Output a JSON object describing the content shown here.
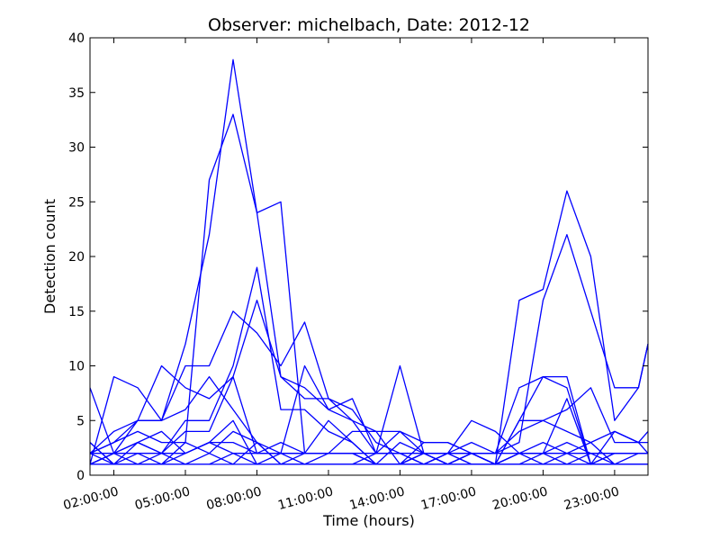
{
  "chart_data": {
    "type": "line",
    "title": "Observer: michelbach, Date: 2012-12",
    "xlabel": "Time (hours)",
    "ylabel": "Detection count",
    "xlim": [
      0,
      23.4
    ],
    "ylim": [
      0,
      40
    ],
    "x_ticks": [
      {
        "value": 1,
        "label": "02:00:00"
      },
      {
        "value": 4,
        "label": "05:00:00"
      },
      {
        "value": 7,
        "label": "08:00:00"
      },
      {
        "value": 10,
        "label": "11:00:00"
      },
      {
        "value": 13,
        "label": "14:00:00"
      },
      {
        "value": 16,
        "label": "17:00:00"
      },
      {
        "value": 19,
        "label": "20:00:00"
      },
      {
        "value": 22,
        "label": "23:00:00"
      }
    ],
    "y_ticks": [
      0,
      5,
      10,
      15,
      20,
      25,
      30,
      35,
      40
    ],
    "grid": false,
    "color": "#0000ff",
    "series": [
      {
        "x": [
          0,
          1,
          2,
          3,
          4,
          5,
          6,
          7,
          8,
          9,
          10,
          11,
          12,
          13,
          14,
          15,
          16,
          17,
          18,
          19,
          20,
          21,
          22,
          23,
          23.4
        ],
        "y": [
          3,
          1,
          1,
          1,
          3,
          27,
          33,
          24,
          25,
          2,
          2,
          2,
          1,
          1,
          2,
          1,
          2,
          1,
          16,
          17,
          26,
          20,
          5,
          8,
          12
        ]
      },
      {
        "x": [
          0,
          1,
          2,
          3,
          4,
          5,
          6,
          7,
          8,
          9,
          10,
          11,
          12,
          13,
          14,
          15,
          16,
          17,
          18,
          19,
          20,
          21,
          22,
          23,
          23.4
        ],
        "y": [
          1,
          2,
          5,
          5,
          12,
          22,
          38,
          24,
          9,
          8,
          6,
          5,
          4,
          4,
          3,
          3,
          2,
          2,
          3,
          16,
          22,
          15,
          8,
          8,
          12
        ]
      },
      {
        "x": [
          0,
          1,
          2,
          3,
          4,
          5,
          6,
          7,
          8,
          9,
          10,
          11,
          12,
          13,
          14,
          15,
          16,
          17,
          18,
          19,
          20,
          21,
          22,
          23,
          23.4
        ],
        "y": [
          2,
          3,
          5,
          5,
          10,
          10,
          15,
          13,
          10,
          14,
          7,
          6,
          3,
          2,
          2,
          2,
          2,
          1,
          5,
          9,
          9,
          1,
          4,
          3,
          4
        ]
      },
      {
        "x": [
          0,
          1,
          2,
          3,
          4,
          5,
          6,
          7,
          8,
          9,
          10,
          11,
          12,
          13,
          14,
          15,
          16,
          17,
          18,
          19,
          20,
          21,
          22,
          23,
          23.4
        ],
        "y": [
          2,
          4,
          5,
          10,
          8,
          7,
          9,
          16,
          9,
          7,
          7,
          5,
          2,
          10,
          2,
          1,
          2,
          2,
          8,
          9,
          8,
          1,
          2,
          2,
          2
        ]
      },
      {
        "x": [
          0,
          1,
          2,
          3,
          4,
          5,
          6,
          7,
          8,
          9,
          10,
          11,
          12,
          13,
          14,
          15,
          16,
          17,
          18,
          19,
          20,
          21,
          22,
          23,
          23.4
        ],
        "y": [
          8,
          2,
          3,
          2,
          5,
          5,
          10,
          19,
          6,
          6,
          4,
          3,
          1,
          1,
          2,
          1,
          2,
          1,
          5,
          5,
          6,
          8,
          3,
          3,
          3
        ]
      },
      {
        "x": [
          0,
          1,
          2,
          3,
          4,
          5,
          6,
          7,
          8,
          9,
          10,
          11,
          12,
          13,
          14,
          15,
          16,
          17,
          18,
          19,
          20,
          21,
          22,
          23,
          23.4
        ],
        "y": [
          1,
          9,
          8,
          5,
          6,
          9,
          6,
          3,
          2,
          10,
          6,
          7,
          2,
          4,
          2,
          2,
          5,
          4,
          2,
          2,
          7,
          1,
          2,
          2,
          2
        ]
      },
      {
        "x": [
          0,
          1,
          2,
          3,
          4,
          5,
          6,
          7,
          8,
          9,
          10,
          11,
          12,
          13,
          14,
          15,
          16,
          17,
          18,
          19,
          20,
          21,
          22,
          23,
          23.4
        ],
        "y": [
          1,
          2,
          3,
          2,
          4,
          4,
          9,
          2,
          2,
          2,
          5,
          3,
          1,
          3,
          2,
          2,
          3,
          2,
          4,
          5,
          4,
          3,
          4,
          3,
          2
        ]
      },
      {
        "x": [
          0,
          1,
          2,
          3,
          4,
          5,
          6,
          7,
          8,
          9,
          10,
          11,
          12,
          13,
          14,
          15,
          16,
          17,
          18,
          19,
          20,
          21,
          22,
          23,
          23.4
        ],
        "y": [
          2,
          3,
          4,
          3,
          3,
          2,
          4,
          3,
          1,
          1,
          2,
          2,
          1,
          1,
          2,
          1,
          2,
          1,
          2,
          2,
          2,
          2,
          1,
          1,
          1
        ]
      },
      {
        "x": [
          0,
          1,
          2,
          3,
          4,
          5,
          6,
          7,
          8,
          9,
          10,
          11,
          12,
          13,
          14,
          15,
          16,
          17,
          18,
          19,
          20,
          21,
          22,
          23,
          23.4
        ],
        "y": [
          1,
          1,
          2,
          1,
          2,
          3,
          5,
          1,
          2,
          1,
          1,
          1,
          2,
          2,
          1,
          2,
          1,
          1,
          1,
          2,
          1,
          2,
          2,
          2,
          2
        ]
      },
      {
        "x": [
          0,
          1,
          2,
          3,
          4,
          5,
          6,
          7,
          8,
          9,
          10,
          11,
          12,
          13,
          14,
          15,
          16,
          17,
          18,
          19,
          20,
          21,
          22,
          23,
          23.4
        ],
        "y": [
          3,
          1,
          1,
          2,
          1,
          1,
          2,
          1,
          1,
          2,
          2,
          2,
          1,
          1,
          1,
          2,
          1,
          1,
          2,
          1,
          2,
          1,
          1,
          1,
          1
        ]
      },
      {
        "x": [
          0,
          1,
          2,
          3,
          4,
          5,
          6,
          7,
          8,
          9,
          10,
          11,
          12,
          13,
          14,
          15,
          16,
          17,
          18,
          19,
          20,
          21,
          22,
          23,
          23.4
        ],
        "y": [
          2,
          2,
          1,
          1,
          1,
          2,
          1,
          3,
          1,
          1,
          1,
          1,
          1,
          1,
          1,
          1,
          1,
          1,
          1,
          1,
          1,
          1,
          1,
          1,
          1
        ]
      },
      {
        "x": [
          0,
          1,
          2,
          3,
          4,
          5,
          6,
          7,
          8,
          9,
          10,
          11,
          12,
          13,
          14,
          15,
          16,
          17,
          18,
          19,
          20,
          21,
          22,
          23,
          23.4
        ],
        "y": [
          1,
          1,
          1,
          1,
          1,
          1,
          1,
          1,
          1,
          1,
          1,
          1,
          1,
          1,
          1,
          1,
          1,
          1,
          1,
          1,
          1,
          1,
          1,
          1,
          1
        ]
      },
      {
        "x": [
          0,
          1,
          2,
          3,
          4,
          5,
          6,
          7,
          8,
          9,
          10,
          11,
          12,
          13,
          14,
          15,
          16,
          17,
          18,
          19,
          20,
          21,
          22,
          23,
          23.4
        ],
        "y": [
          1,
          2,
          2,
          2,
          2,
          3,
          2,
          2,
          3,
          2,
          2,
          4,
          4,
          1,
          3,
          3,
          2,
          2,
          2,
          2,
          3,
          2,
          2,
          2,
          2
        ]
      },
      {
        "x": [
          0,
          1,
          2,
          3,
          4,
          5,
          6,
          7,
          8,
          9,
          10,
          11,
          12,
          13,
          14,
          15,
          16,
          17,
          18,
          19,
          20,
          21,
          22,
          23,
          23.4
        ],
        "y": [
          2,
          1,
          3,
          4,
          2,
          3,
          3,
          2,
          2,
          2,
          2,
          2,
          2,
          2,
          1,
          2,
          2,
          1,
          2,
          3,
          2,
          3,
          1,
          2,
          2
        ]
      }
    ]
  }
}
